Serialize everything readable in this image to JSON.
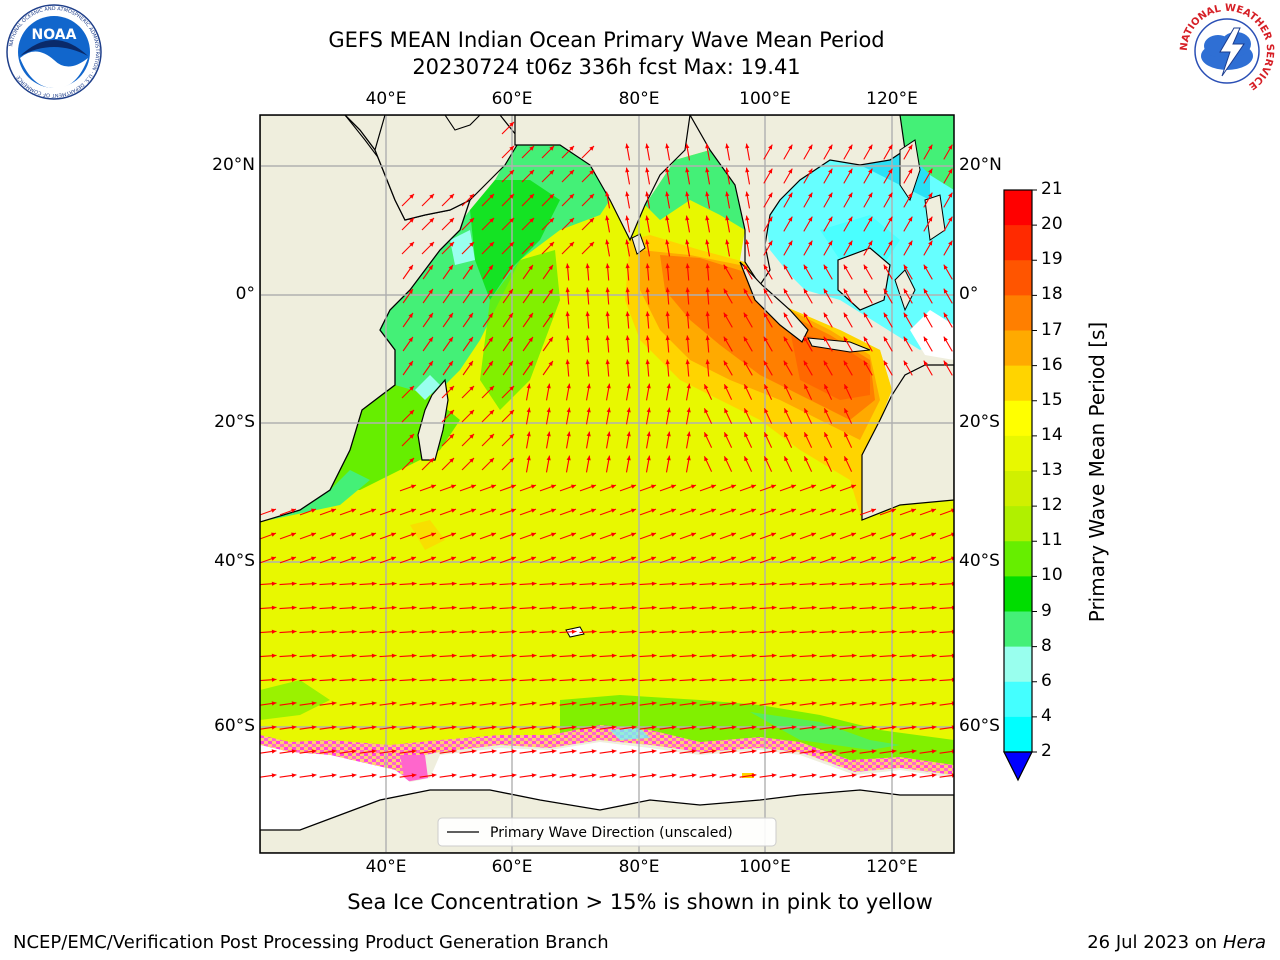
{
  "header": {
    "title_line1": "GEFS MEAN Indian Ocean Primary Wave Mean Period",
    "title_line2": "20230724 t06z 336h fcst   Max: 19.41"
  },
  "logos": {
    "noaa_text": "NOAA",
    "noaa_ring_text": "NATIONAL OCEANIC AND ATMOSPHERIC ADMINISTRATION · U.S. DEPARTMENT OF COMMERCE",
    "nws_ring_text": "NATIONAL WEATHER SERVICE"
  },
  "map": {
    "lon_ticks": [
      "40°E",
      "60°E",
      "80°E",
      "100°E",
      "120°E"
    ],
    "lat_ticks_left": [
      "20°N",
      "0°",
      "20°S",
      "40°S",
      "60°S"
    ],
    "lat_ticks_right": [
      "20°N",
      "0°",
      "20°S",
      "40°S",
      "60°S"
    ],
    "legend_label": "Primary Wave Direction (unscaled)",
    "colors": {
      "land": "#efeedd",
      "arrow": "#ff0000",
      "grid": "#b0b0b0",
      "coast": "#000000"
    }
  },
  "colorbar": {
    "label": "Primary Wave Mean Period [s]",
    "ticks": [
      "21",
      "20",
      "19",
      "18",
      "17",
      "16",
      "15",
      "14",
      "13",
      "12",
      "11",
      "10",
      "9",
      "8",
      "6",
      "4",
      "2"
    ],
    "colors": [
      "#ff0000",
      "#ff2a00",
      "#ff5500",
      "#ff7f00",
      "#ffaa00",
      "#ffd400",
      "#ffff00",
      "#e8f800",
      "#d0f000",
      "#b0f000",
      "#66ee00",
      "#00dd00",
      "#44f077",
      "#99ffee",
      "#44ffff",
      "#00ffff",
      "#0099ff"
    ],
    "under_color": "#0000ff"
  },
  "caption": "Sea Ice Concentration > 15% is shown in pink to yellow",
  "footer": {
    "left": "NCEP/EMC/Verification Post Processing Product Generation Branch",
    "date": "26 Jul 2023 on ",
    "machine": "Hera"
  }
}
